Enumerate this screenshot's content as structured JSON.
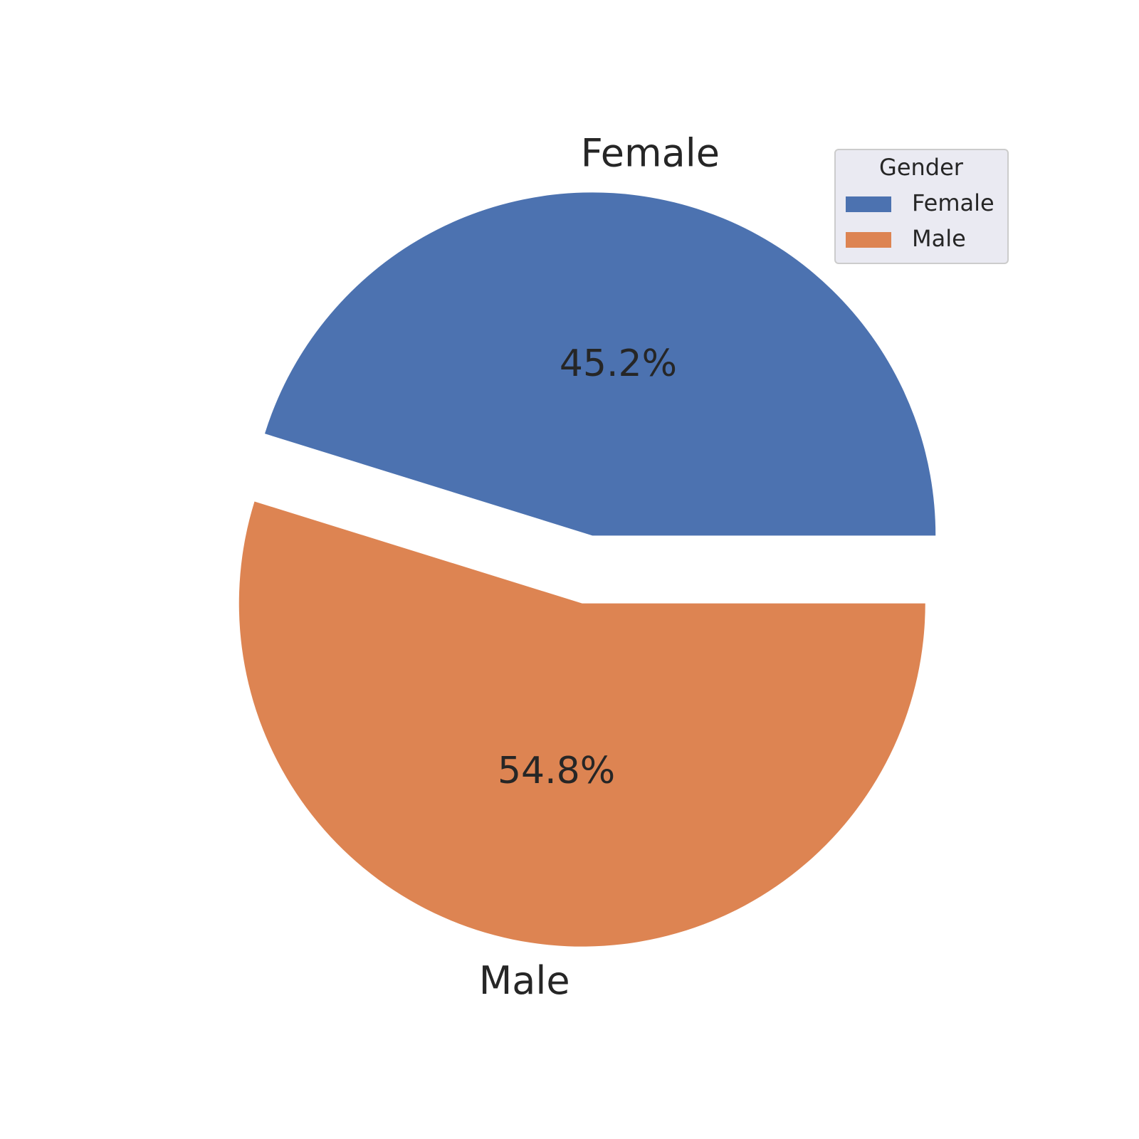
{
  "chart_data": {
    "type": "pie",
    "categories": [
      "Female",
      "Male"
    ],
    "values": [
      45.2,
      54.8
    ],
    "value_labels": [
      "45.2%",
      "54.8%"
    ],
    "colors": [
      "#4c72b0",
      "#dd8452"
    ],
    "explode": [
      0.1,
      0.1
    ],
    "start_angle": 0,
    "legend": {
      "title": "Gender",
      "loc": "upper right"
    }
  }
}
